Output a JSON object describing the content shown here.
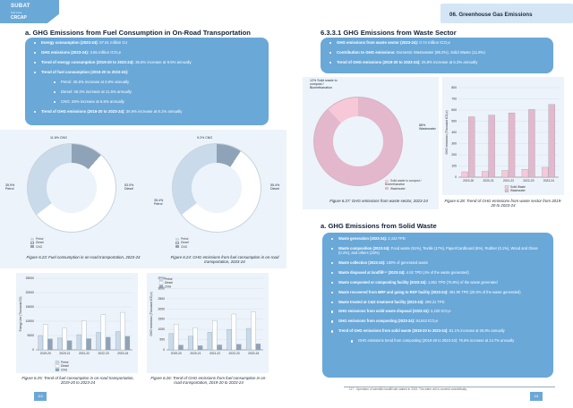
{
  "header": {
    "logo_line1": "SUBAT",
    "logo_line2": "Sub Area",
    "logo_line3": "CRCAP",
    "chapter": "06. Greenhouse Gas Emissions"
  },
  "left": {
    "heading": "a. GHG Emissions from Fuel Consumption in On-Road Transportation",
    "bullets": [
      {
        "k": "Energy consumption (2023-24):",
        "v": " 57.51 million GJ"
      },
      {
        "k": "GHG emissions (2023-24):",
        "v": " 3.65 million tCO₂e"
      },
      {
        "k": "Trend of energy consumption (2019-20 to 2023-24):",
        "v": " 36.6% increase at 9.5% annually"
      },
      {
        "k": "Trend of fuel consumption (2019-20 to 2023-24):",
        "v": ""
      },
      {
        "k": "",
        "v": "Petrol: 26.6% increase at 6.6% annually",
        "sub": true
      },
      {
        "k": "",
        "v": "Diesel: 46.3% increase at 11.6% annually",
        "sub": true
      },
      {
        "k": "",
        "v": "CNG: 26% increase at 6.5% annually",
        "sub": true
      },
      {
        "k": "Trend of GHG emissions (2019-20 to 2023-24):",
        "v": " 36.6% increase at 9.1% annually"
      }
    ],
    "donut1": {
      "labels": {
        "cng": "11.6% CNG",
        "diesel": "53.0% Diesel",
        "petrol": "35.9% Petrol"
      },
      "legend": [
        "Petrol",
        "Diesel",
        "CNG"
      ],
      "caption": "Figure 6.23: Fuel consumption in on-road transportation, 2023-24"
    },
    "donut2": {
      "labels": {
        "cng": "9.2% CNG",
        "diesel": "55.4% Diesel",
        "petrol": "35.4% Petrol"
      },
      "legend": [
        "Petrol",
        "Diesel",
        "CNG"
      ],
      "caption": "Figure 6.24: GHG emissions from fuel consumption in on-road transportation, 2023-24"
    },
    "bar1": {
      "ylabel": "Energy Use (Thousand GJ)",
      "yticks": [
        "0",
        "5000",
        "10000",
        "15000",
        "20000",
        "25000"
      ],
      "legend": [
        "Petrol",
        "Diesel",
        "CNG"
      ],
      "caption": "Figure 6.25: Trend of fuel consumption in on-road transportation, 2019-20 to 2023-24"
    },
    "bar2": {
      "ylabel": "GHG emissions (Thousand tCO₂e)",
      "yticks": [
        "0",
        "500",
        "1000",
        "1500",
        "2000",
        "2500",
        "3000",
        "3500"
      ],
      "legend": [
        "Petrol",
        "Diesel",
        "CNG"
      ],
      "caption": "Figure 6.26: Trend of GHG emissions from fuel consumption in on-road transportation, 2019-20 to 2023-24"
    }
  },
  "right": {
    "heading": "6.3.3.1 GHG Emissions from Waste Sector",
    "bullets": [
      {
        "k": "GHG emissions from waste sector (2023-24):",
        "v": " 0.74 million tCO₂e"
      },
      {
        "k": "Contribution to GHG emissions:",
        "v": " Domestic Wastewater (88.2%), Solid Waste (11.8%)"
      },
      {
        "k": "Trend of GHG emissions (2019-20 to 2023-24):",
        "v": " 25.8% increase at 6.3% annually"
      }
    ],
    "donut3": {
      "labels": {
        "solid": "12% Solid waste to compost / Biomethanation",
        "ww": "88% Wastewater"
      },
      "legend": [
        "Solid waste to compost / Biomethanation",
        "Wastewater"
      ],
      "caption": "Figure 6.27: GHG emissions from waste sector, 2023-24"
    },
    "bar3": {
      "ylabel": "GHG emissions (Thousand tCO₂e)",
      "legend": [
        "Solid Waste",
        "Wastewater"
      ],
      "caption": "Figure 6.28: Trend of GHG emissions from waste sector from 2019-20 to 2023-24"
    },
    "solid_heading": "a. GHG Emissions from Solid Waste",
    "solid_bullets": [
      {
        "k": "Waste generation (2023-24):",
        "v": " 2,442 TPD"
      },
      {
        "k": "Waste composition (2023-24):",
        "v": " Food waste (51%), Textile (17%), Paper/Cardboard (6%), Rubber (0.1%), Wood and Glass (0.4%), and others (15%)"
      },
      {
        "k": "Waste collection (2023-24):",
        "v": " 100% of generated waste"
      },
      {
        "k": "Waste disposed at landfill¹¹⁷ (2023-24):",
        "v": " 4.62 TPD (4% of the waste generated)"
      },
      {
        "k": "Waste composted or composting facility (2023-24):",
        "v": " 1,851 TPD (75.8%) of the waste generated"
      },
      {
        "k": "Waste recovered from MRF and going to RDF facility (2023-24):",
        "v": " 491.90 TPD (20.0% of the waste generated)"
      },
      {
        "k": "Waste treated at C&D treatment facility (2023-24):",
        "v": " 299.31 TPD"
      },
      {
        "k": "GHG emissions from solid waste disposal (2023-24):",
        "v": " 3,220 tCO₂e"
      },
      {
        "k": "GHG emissions from composting (2023-24):",
        "v": " 84,842 tCO₂e"
      },
      {
        "k": "Trend of GHG emissions from solid waste (2019-20 to 2023-24):",
        "v": " 81.1% increase at 25.8% annually"
      },
      {
        "k": "",
        "v": "GHG emissions trend from composting (2019-20 to 2023-24): 76.6% increase at 14.7% annually",
        "sub": true
      }
    ]
  },
  "chart_data": [
    {
      "type": "pie",
      "title": "",
      "categories": [
        "Petrol",
        "Diesel",
        "CNG"
      ],
      "values": [
        35.9,
        53.0,
        11.6
      ]
    },
    {
      "type": "pie",
      "title": "",
      "categories": [
        "Petrol",
        "Diesel",
        "CNG"
      ],
      "values": [
        35.4,
        55.4,
        9.2
      ]
    },
    {
      "type": "bar",
      "categories": [
        "2019-20",
        "2020-21",
        "2021-22",
        "2022-23",
        "2023-24"
      ],
      "series": [
        {
          "name": "Petrol",
          "values": [
            5000,
            4200,
            5300,
            6100,
            6400
          ]
        },
        {
          "name": "Diesel",
          "values": [
            8900,
            7600,
            10100,
            12300,
            13100
          ]
        },
        {
          "name": "CNG",
          "values": [
            3800,
            3200,
            3900,
            4400,
            4700
          ]
        }
      ],
      "ylabel": "Energy Use (Thousand GJ)",
      "ylim": [
        0,
        25000
      ]
    },
    {
      "type": "bar",
      "categories": [
        "2019-20",
        "2020-21",
        "2021-22",
        "2022-23",
        "2023-24"
      ],
      "series": [
        {
          "name": "Petrol",
          "values": [
            800,
            670,
            860,
            1000,
            1050
          ]
        },
        {
          "name": "Diesel",
          "values": [
            1260,
            1080,
            1430,
            1750,
            1860
          ]
        },
        {
          "name": "CNG",
          "values": [
            230,
            200,
            240,
            270,
            290
          ]
        }
      ],
      "ylabel": "GHG emissions (Thousand tCO₂e)",
      "ylim": [
        0,
        3500
      ]
    },
    {
      "type": "pie",
      "title": "",
      "categories": [
        "Solid waste to compost / Biomethanation",
        "Wastewater"
      ],
      "values": [
        12,
        88
      ]
    },
    {
      "type": "bar",
      "categories": [
        "2019-20",
        "2020-21",
        "2021-22",
        "2022-23",
        "2023-24"
      ],
      "series": [
        {
          "name": "Solid Waste",
          "values": [
            48,
            52,
            60,
            70,
            88
          ]
        },
        {
          "name": "Wastewater",
          "values": [
            540,
            555,
            575,
            605,
            650
          ]
        }
      ],
      "ylabel": "GHG emissions (Thousand tCO₂e)",
      "ylim": [
        0,
        800
      ]
    }
  ],
  "footer": {
    "footnote": "117 - Operation of scientific landfill site started in 2019. The wider cell is covered scientifically.",
    "page_left": "110",
    "page_right": "111"
  },
  "colors": {
    "petrol": "#c9dbea",
    "diesel": "#ffffff",
    "cng": "#8fa3b8",
    "accent": "#6aa8d8",
    "solid": "#f6c8d8",
    "wastewater": "#e4b8cc"
  }
}
